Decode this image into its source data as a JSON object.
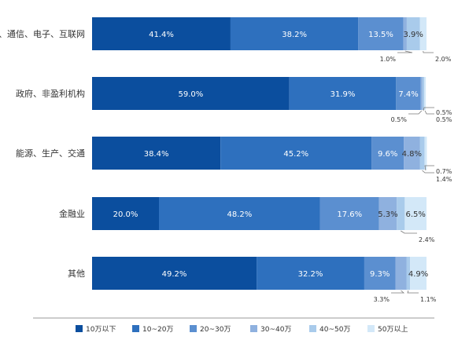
{
  "chart_data": {
    "type": "bar",
    "orientation": "horizontal-stacked-100",
    "categories": [
      "IT、通信、电子、互联网",
      "政府、非盈利机构",
      "能源、生产、交通",
      "金融业",
      "其他"
    ],
    "series": [
      {
        "name": "10万以下",
        "color": "#0b4e9e",
        "values": [
          41.4,
          59.0,
          38.4,
          20.0,
          49.2
        ]
      },
      {
        "name": "10~20万",
        "color": "#2e70be",
        "values": [
          38.2,
          31.9,
          45.2,
          48.2,
          32.2
        ]
      },
      {
        "name": "20~30万",
        "color": "#5b8fd0",
        "values": [
          13.5,
          7.4,
          9.6,
          17.6,
          9.3
        ]
      },
      {
        "name": "30~40万",
        "color": "#8fb1df",
        "values": [
          1.0,
          0.5,
          4.8,
          5.3,
          3.3
        ]
      },
      {
        "name": "40~50万",
        "color": "#a9cbeb",
        "values": [
          3.9,
          0.5,
          1.4,
          2.4,
          1.1
        ]
      },
      {
        "name": "50万以上",
        "color": "#d3e8f8",
        "values": [
          2.0,
          0.5,
          0.7,
          6.5,
          4.9
        ]
      }
    ],
    "data_labels": [
      [
        "41.4%",
        "38.2%",
        "13.5%",
        "1.0%",
        "3.9%",
        "2.0%"
      ],
      [
        "59.0%",
        "31.9%",
        "7.4%",
        "0.5%",
        "0.5%",
        "0.5%"
      ],
      [
        "38.4%",
        "45.2%",
        "9.6%",
        "4.8%",
        "1.4%",
        "0.7%"
      ],
      [
        "20.0%",
        "48.2%",
        "17.6%",
        "5.3%",
        "2.4%",
        "6.5%"
      ],
      [
        "49.2%",
        "32.2%",
        "9.3%",
        "3.3%",
        "1.1%",
        "4.9%"
      ]
    ],
    "xlim": [
      0,
      100
    ],
    "legend_position": "bottom"
  }
}
